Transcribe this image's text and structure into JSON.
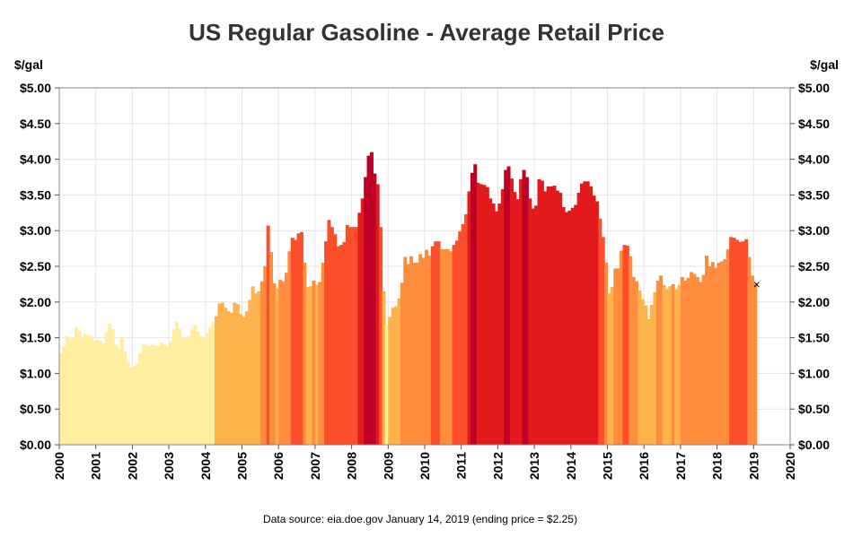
{
  "chart_data": {
    "type": "area",
    "title": "US Regular Gasoline - Average Retail Price",
    "ylabel_left": "$/gal",
    "ylabel_right": "$/gal",
    "xlim": [
      2000,
      2020
    ],
    "ylim": [
      0,
      5
    ],
    "x_ticks": [
      "2000",
      "2001",
      "2002",
      "2003",
      "2004",
      "2005",
      "2006",
      "2007",
      "2008",
      "2009",
      "2010",
      "2011",
      "2012",
      "2013",
      "2014",
      "2015",
      "2016",
      "2017",
      "2018",
      "2019",
      "2020"
    ],
    "y_ticks": [
      "$0.00",
      "$0.50",
      "$1.00",
      "$1.50",
      "$2.00",
      "$2.50",
      "$3.00",
      "$3.50",
      "$4.00",
      "$4.50",
      "$5.00"
    ],
    "grid": true,
    "color_scale": {
      "thresholds": [
        1.75,
        2.25,
        2.75,
        3.25,
        3.75
      ],
      "colors": [
        "#ffeda0",
        "#feb24c",
        "#fd8d3c",
        "#fc4e2a",
        "#e31a1c",
        "#bd0026"
      ]
    },
    "series": [
      {
        "x": [
          "2000-01",
          "2000-02",
          "2000-03",
          "2000-04",
          "2000-05",
          "2000-06",
          "2000-07",
          "2000-08",
          "2000-09",
          "2000-10",
          "2000-11",
          "2000-12",
          "2001-01",
          "2001-02",
          "2001-03",
          "2001-04",
          "2001-05",
          "2001-06",
          "2001-07",
          "2001-08",
          "2001-09",
          "2001-10",
          "2001-11",
          "2001-12",
          "2002-01",
          "2002-02",
          "2002-03",
          "2002-04",
          "2002-05",
          "2002-06",
          "2002-07",
          "2002-08",
          "2002-09",
          "2002-10",
          "2002-11",
          "2002-12",
          "2003-01",
          "2003-02",
          "2003-03",
          "2003-04",
          "2003-05",
          "2003-06",
          "2003-07",
          "2003-08",
          "2003-09",
          "2003-10",
          "2003-11",
          "2003-12",
          "2004-01",
          "2004-02",
          "2004-03",
          "2004-04",
          "2004-05",
          "2004-06",
          "2004-07",
          "2004-08",
          "2004-09",
          "2004-10",
          "2004-11",
          "2004-12",
          "2005-01",
          "2005-02",
          "2005-03",
          "2005-04",
          "2005-05",
          "2005-06",
          "2005-07",
          "2005-08",
          "2005-09",
          "2005-10",
          "2005-11",
          "2005-12",
          "2006-01",
          "2006-02",
          "2006-03",
          "2006-04",
          "2006-05",
          "2006-06",
          "2006-07",
          "2006-08",
          "2006-09",
          "2006-10",
          "2006-11",
          "2006-12",
          "2007-01",
          "2007-02",
          "2007-03",
          "2007-04",
          "2007-05",
          "2007-06",
          "2007-07",
          "2007-08",
          "2007-09",
          "2007-10",
          "2007-11",
          "2007-12",
          "2008-01",
          "2008-02",
          "2008-03",
          "2008-04",
          "2008-05",
          "2008-06",
          "2008-07",
          "2008-08",
          "2008-09",
          "2008-10",
          "2008-11",
          "2008-12",
          "2009-01",
          "2009-02",
          "2009-03",
          "2009-04",
          "2009-05",
          "2009-06",
          "2009-07",
          "2009-08",
          "2009-09",
          "2009-10",
          "2009-11",
          "2009-12",
          "2010-01",
          "2010-02",
          "2010-03",
          "2010-04",
          "2010-05",
          "2010-06",
          "2010-07",
          "2010-08",
          "2010-09",
          "2010-10",
          "2010-11",
          "2010-12",
          "2011-01",
          "2011-02",
          "2011-03",
          "2011-04",
          "2011-05",
          "2011-06",
          "2011-07",
          "2011-08",
          "2011-09",
          "2011-10",
          "2011-11",
          "2011-12",
          "2012-01",
          "2012-02",
          "2012-03",
          "2012-04",
          "2012-05",
          "2012-06",
          "2012-07",
          "2012-08",
          "2012-09",
          "2012-10",
          "2012-11",
          "2012-12",
          "2013-01",
          "2013-02",
          "2013-03",
          "2013-04",
          "2013-05",
          "2013-06",
          "2013-07",
          "2013-08",
          "2013-09",
          "2013-10",
          "2013-11",
          "2013-12",
          "2014-01",
          "2014-02",
          "2014-03",
          "2014-04",
          "2014-05",
          "2014-06",
          "2014-07",
          "2014-08",
          "2014-09",
          "2014-10",
          "2014-11",
          "2014-12",
          "2015-01",
          "2015-02",
          "2015-03",
          "2015-04",
          "2015-05",
          "2015-06",
          "2015-07",
          "2015-08",
          "2015-09",
          "2015-10",
          "2015-11",
          "2015-12",
          "2016-01",
          "2016-02",
          "2016-03",
          "2016-04",
          "2016-05",
          "2016-06",
          "2016-07",
          "2016-08",
          "2016-09",
          "2016-10",
          "2016-11",
          "2016-12",
          "2017-01",
          "2017-02",
          "2017-03",
          "2017-04",
          "2017-05",
          "2017-06",
          "2017-07",
          "2017-08",
          "2017-09",
          "2017-10",
          "2017-11",
          "2017-12",
          "2018-01",
          "2018-02",
          "2018-03",
          "2018-04",
          "2018-05",
          "2018-06",
          "2018-07",
          "2018-08",
          "2018-09",
          "2018-10",
          "2018-11",
          "2018-12",
          "2019-01"
        ],
        "values": [
          1.29,
          1.38,
          1.52,
          1.48,
          1.5,
          1.65,
          1.59,
          1.5,
          1.55,
          1.53,
          1.52,
          1.45,
          1.47,
          1.45,
          1.42,
          1.58,
          1.7,
          1.62,
          1.4,
          1.35,
          1.5,
          1.3,
          1.15,
          1.08,
          1.1,
          1.13,
          1.28,
          1.4,
          1.4,
          1.38,
          1.4,
          1.39,
          1.38,
          1.43,
          1.41,
          1.38,
          1.45,
          1.62,
          1.72,
          1.62,
          1.5,
          1.49,
          1.52,
          1.62,
          1.68,
          1.58,
          1.52,
          1.49,
          1.56,
          1.65,
          1.72,
          1.8,
          1.98,
          1.99,
          1.92,
          1.87,
          1.85,
          1.99,
          1.97,
          1.83,
          1.79,
          1.87,
          2.03,
          2.22,
          2.12,
          2.15,
          2.29,
          2.5,
          3.07,
          2.7,
          2.26,
          2.19,
          2.31,
          2.29,
          2.41,
          2.71,
          2.9,
          2.87,
          2.96,
          2.98,
          2.55,
          2.21,
          2.22,
          2.3,
          2.24,
          2.28,
          2.55,
          2.85,
          3.15,
          3.05,
          2.95,
          2.78,
          2.8,
          2.84,
          3.08,
          3.05,
          3.05,
          3.05,
          3.25,
          3.45,
          3.75,
          4.05,
          4.1,
          3.8,
          3.65,
          3.05,
          2.15,
          1.68,
          1.79,
          1.92,
          1.94,
          2.05,
          2.27,
          2.63,
          2.53,
          2.64,
          2.55,
          2.55,
          2.67,
          2.62,
          2.73,
          2.65,
          2.78,
          2.85,
          2.85,
          2.74,
          2.74,
          2.74,
          2.71,
          2.8,
          2.86,
          2.99,
          3.09,
          3.23,
          3.55,
          3.81,
          3.93,
          3.67,
          3.65,
          3.64,
          3.61,
          3.45,
          3.38,
          3.27,
          3.38,
          3.58,
          3.85,
          3.9,
          3.73,
          3.54,
          3.44,
          3.72,
          3.85,
          3.75,
          3.45,
          3.31,
          3.35,
          3.72,
          3.7,
          3.55,
          3.62,
          3.62,
          3.63,
          3.56,
          3.53,
          3.33,
          3.26,
          3.28,
          3.32,
          3.36,
          3.53,
          3.66,
          3.69,
          3.69,
          3.62,
          3.49,
          3.41,
          3.17,
          2.91,
          2.55,
          2.12,
          2.21,
          2.47,
          2.47,
          2.72,
          2.8,
          2.79,
          2.64,
          2.35,
          2.29,
          2.16,
          2.04,
          1.95,
          1.76,
          1.96,
          2.14,
          2.3,
          2.37,
          2.24,
          2.18,
          2.22,
          2.25,
          2.18,
          2.24,
          2.35,
          2.3,
          2.34,
          2.42,
          2.39,
          2.35,
          2.28,
          2.38,
          2.65,
          2.5,
          2.56,
          2.48,
          2.55,
          2.57,
          2.6,
          2.74,
          2.91,
          2.9,
          2.87,
          2.84,
          2.85,
          2.88,
          2.63,
          2.37,
          2.25
        ]
      }
    ],
    "annotations": {
      "end_marker": "×",
      "source_note": "Data source: eia.doe.gov   January 14, 2019 (ending price = $2.25)"
    }
  }
}
